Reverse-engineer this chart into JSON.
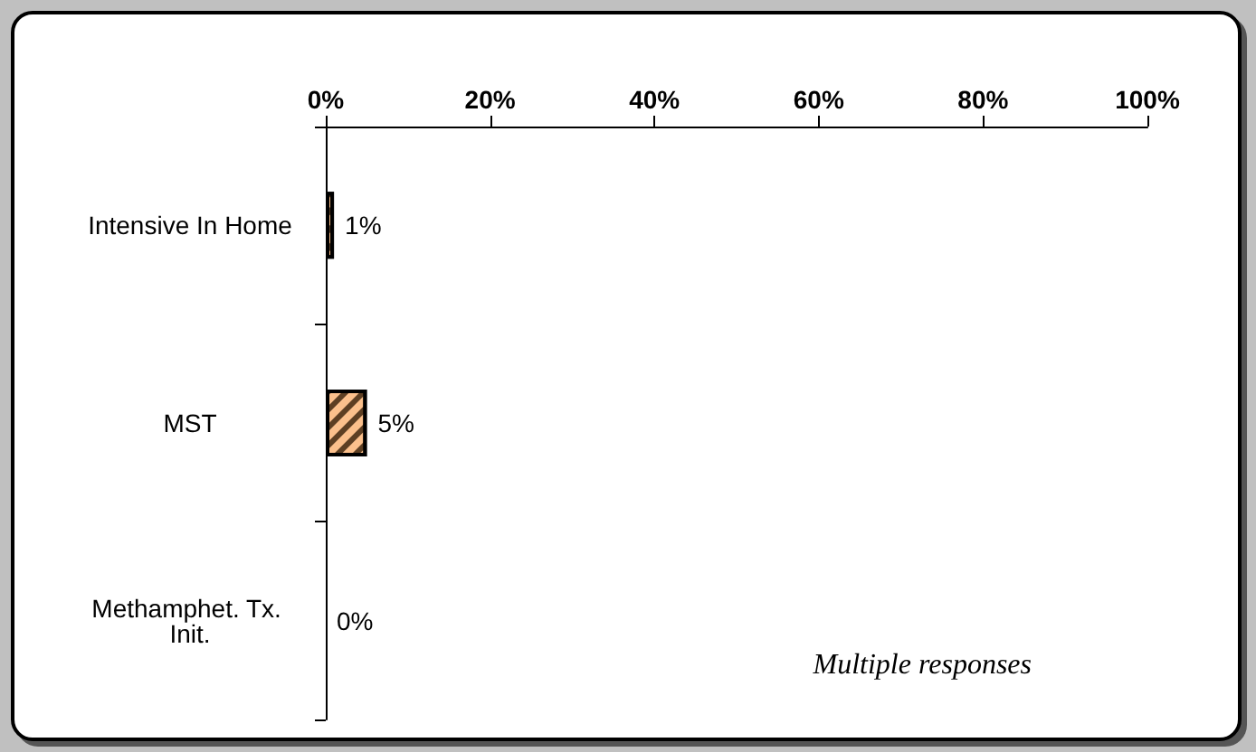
{
  "chart_data": {
    "type": "bar",
    "orientation": "horizontal",
    "categories": [
      "Intensive In Home",
      "MST",
      "Methamphet. Tx. Init."
    ],
    "values": [
      1,
      5,
      0
    ],
    "value_labels": [
      "1%",
      "5%",
      "0%"
    ],
    "color": "#fbc08c",
    "xlim": [
      0,
      100
    ],
    "xticks": [
      {
        "value": 0,
        "label": "0%"
      },
      {
        "value": 20,
        "label": "20%"
      },
      {
        "value": 40,
        "label": "40%"
      },
      {
        "value": 60,
        "label": "60%"
      },
      {
        "value": 80,
        "label": "80%"
      },
      {
        "value": 100,
        "label": "100%"
      }
    ],
    "grid": false,
    "annotations": [
      "Multiple responses"
    ]
  }
}
